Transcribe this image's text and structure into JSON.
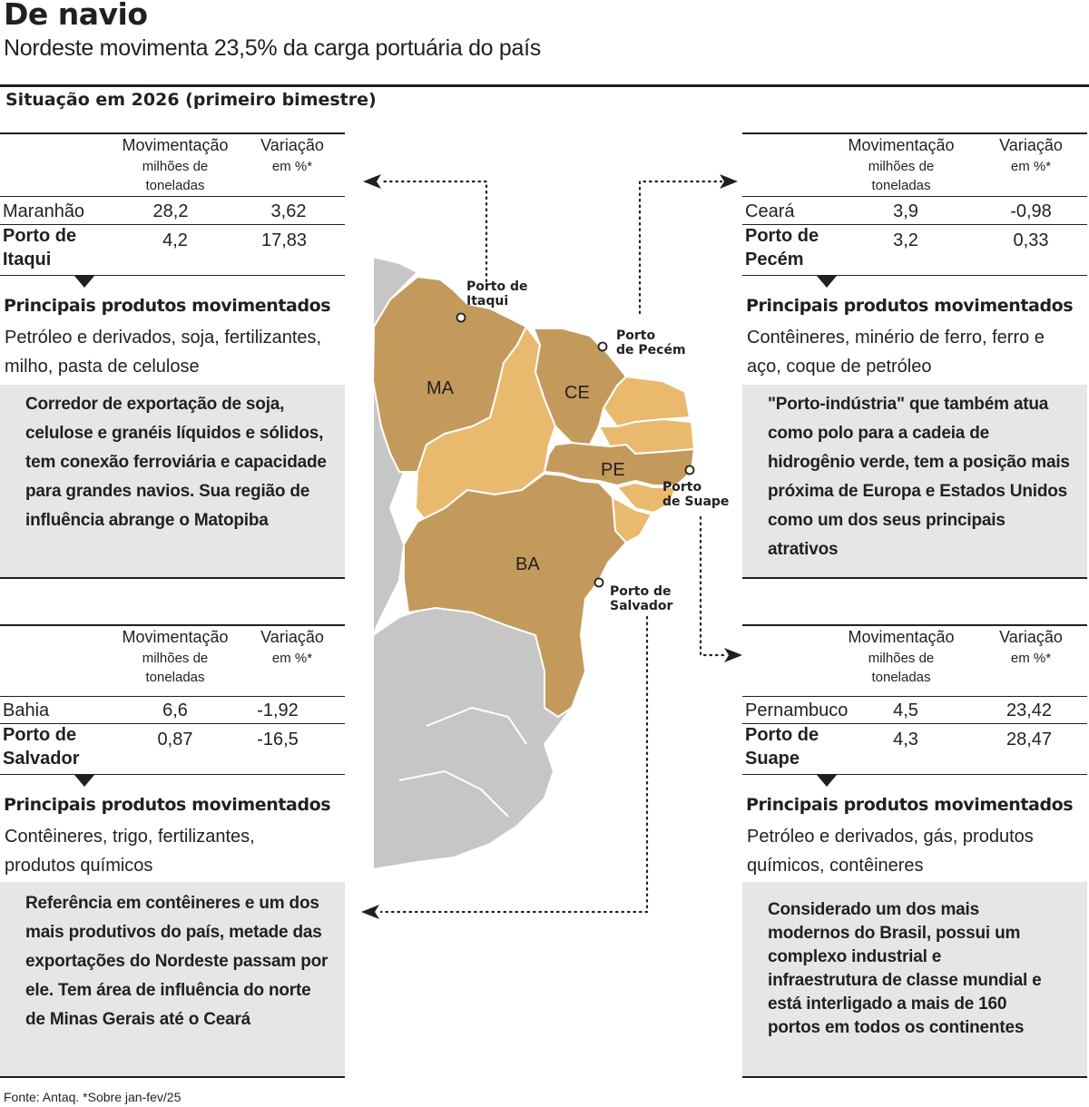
{
  "title": "De navio",
  "subtitle": "Nordeste movimenta 23,5% da carga portuária do país",
  "section_heading": "Situação em 2026 (primeiro bimestre)",
  "table_headers": {
    "col1": "Movimentação",
    "col1_sub": "milhões de toneladas",
    "col2": "Variação",
    "col2_sub": "em %*"
  },
  "products_title": "Principais produtos movimentados",
  "panels": {
    "maranhao": {
      "state_name": "Maranhão",
      "state_mov": "28,2",
      "state_var": "3,62",
      "port_name": "Porto de Itaqui",
      "port_mov": "4,2",
      "port_var": "17,83",
      "products": "Petróleo e derivados, soja, fertilizantes, milho, pasta de celulose",
      "description": "Corredor de exportação de soja, celulose e granéis líquidos e sólidos, tem conexão ferroviária e capacidade para grandes navios. Sua região de influência abrange o Matopiba"
    },
    "ceara": {
      "state_name": "Ceará",
      "state_mov": "3,9",
      "state_var": "-0,98",
      "port_name": "Porto de Pecém",
      "port_mov": "3,2",
      "port_var": "0,33",
      "products": "Contêineres, minério de ferro, ferro e aço, coque de petróleo",
      "description": "\"Porto-indústria\" que também atua como polo para a cadeia de hidrogênio verde, tem a posição mais próxima de Europa e Estados Unidos como um dos seus principais atrativos"
    },
    "bahia": {
      "state_name": "Bahia",
      "state_mov": "6,6",
      "state_var": "-1,92",
      "port_name": "Porto de Salvador",
      "port_mov": "0,87",
      "port_var": "-16,5",
      "products": "Contêineres, trigo, fertilizantes, produtos químicos",
      "description": "Referência em contêineres e um dos mais produtivos do país, metade das exportações do Nordeste passam por ele. Tem área de influência do norte de Minas Gerais até o Ceará"
    },
    "pernambuco": {
      "state_name": "Pernambuco",
      "state_mov": "4,5",
      "state_var": "23,42",
      "port_name": "Porto de Suape",
      "port_mov": "4,3",
      "port_var": "28,47",
      "products": "Petróleo e derivados, gás, produtos químicos, contêineres",
      "description": "Considerado um dos mais modernos do Brasil, possui um complexo industrial e infraestrutura de classe mundial e está interligado a mais de 160 portos em todos os continentes"
    }
  },
  "map": {
    "state_labels": {
      "ma": "MA",
      "ce": "CE",
      "pe": "PE",
      "ba": "BA"
    },
    "port_labels": {
      "itaqui": "Porto de Itaqui",
      "pecem": "Porto de Pecém",
      "suape": "Porto de Suape",
      "salvador": "Porto de Salvador"
    },
    "colors": {
      "highlight_state": "#c39a5c",
      "other_ne_state": "#e9b96e",
      "other_country": "#c6c6c6",
      "border": "#ffffff"
    }
  },
  "source": "Fonte: Antaq. *Sobre jan-fev/25"
}
